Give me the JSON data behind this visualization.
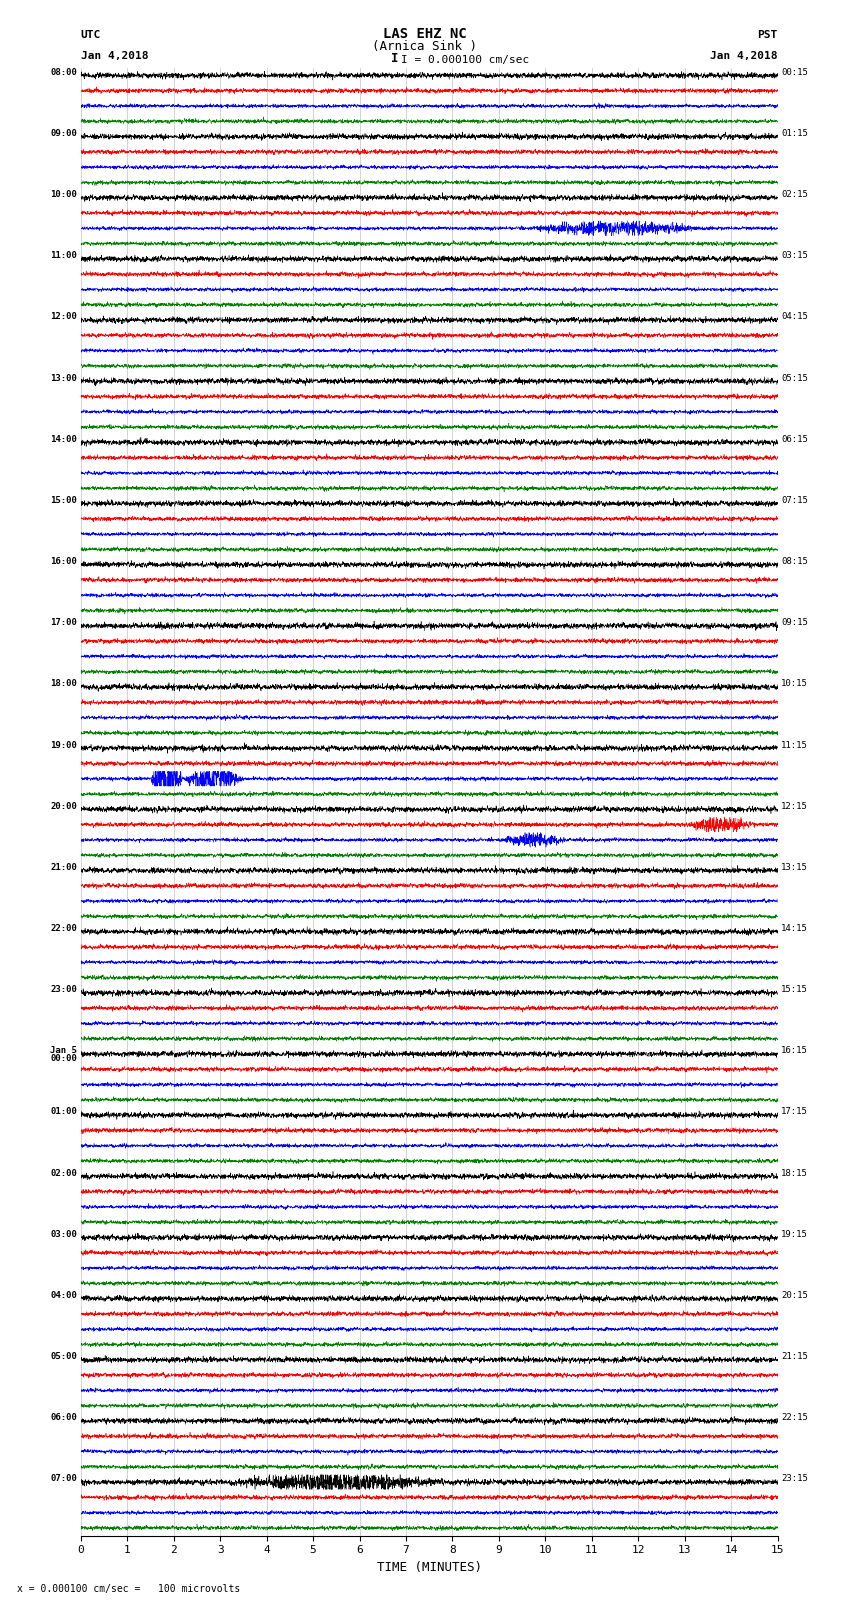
{
  "title_line1": "LAS EHZ NC",
  "title_line2": "(Arnica Sink )",
  "scale_label": "I = 0.000100 cm/sec",
  "left_header": "UTC",
  "left_date": "Jan 4,2018",
  "right_header": "PST",
  "right_date": "Jan 4,2018",
  "xlabel": "TIME (MINUTES)",
  "bottom_note": "= 0.000100 cm/sec =   100 microvolts",
  "utc_times": [
    "08:00",
    "09:00",
    "10:00",
    "11:00",
    "12:00",
    "13:00",
    "14:00",
    "15:00",
    "16:00",
    "17:00",
    "18:00",
    "19:00",
    "20:00",
    "21:00",
    "22:00",
    "23:00",
    "Jan 5\n00:00",
    "01:00",
    "02:00",
    "03:00",
    "04:00",
    "05:00",
    "06:00",
    "07:00"
  ],
  "pst_times": [
    "00:15",
    "01:15",
    "02:15",
    "03:15",
    "04:15",
    "05:15",
    "06:15",
    "07:15",
    "08:15",
    "09:15",
    "10:15",
    "11:15",
    "12:15",
    "13:15",
    "14:15",
    "15:15",
    "16:15",
    "17:15",
    "18:15",
    "19:15",
    "20:15",
    "21:15",
    "22:15",
    "23:15"
  ],
  "n_rows": 24,
  "traces_per_row": 4,
  "colors": [
    "black",
    "red",
    "blue",
    "green"
  ],
  "bg_color": "white",
  "xmin": 0,
  "xmax": 15,
  "xticks": [
    0,
    1,
    2,
    3,
    4,
    5,
    6,
    7,
    8,
    9,
    10,
    11,
    12,
    13,
    14,
    15
  ],
  "fig_width": 8.5,
  "fig_height": 16.13,
  "special_events": [
    {
      "row": 2,
      "trace": 2,
      "xstart": 9.5,
      "xend": 13.5,
      "amplitude": 3.0
    },
    {
      "row": 11,
      "trace": 2,
      "xstart": 1.5,
      "xend": 2.2,
      "amplitude": 12.0
    },
    {
      "row": 11,
      "trace": 2,
      "xstart": 2.2,
      "xend": 3.5,
      "amplitude": 6.0
    },
    {
      "row": 12,
      "trace": 2,
      "xstart": 9.0,
      "xend": 10.5,
      "amplitude": 3.0
    },
    {
      "row": 12,
      "trace": 1,
      "xstart": 13.0,
      "xend": 14.5,
      "amplitude": 2.5
    },
    {
      "row": 23,
      "trace": 0,
      "xstart": 3.0,
      "xend": 8.0,
      "amplitude": 2.5
    },
    {
      "row": 24,
      "trace": 0,
      "xstart": 3.0,
      "xend": 8.0,
      "amplitude": 2.0
    },
    {
      "row": 25,
      "trace": 2,
      "xstart": 5.0,
      "xend": 9.0,
      "amplitude": 1.5
    }
  ],
  "noise_amplitudes": [
    0.28,
    0.22,
    0.18,
    0.2
  ]
}
